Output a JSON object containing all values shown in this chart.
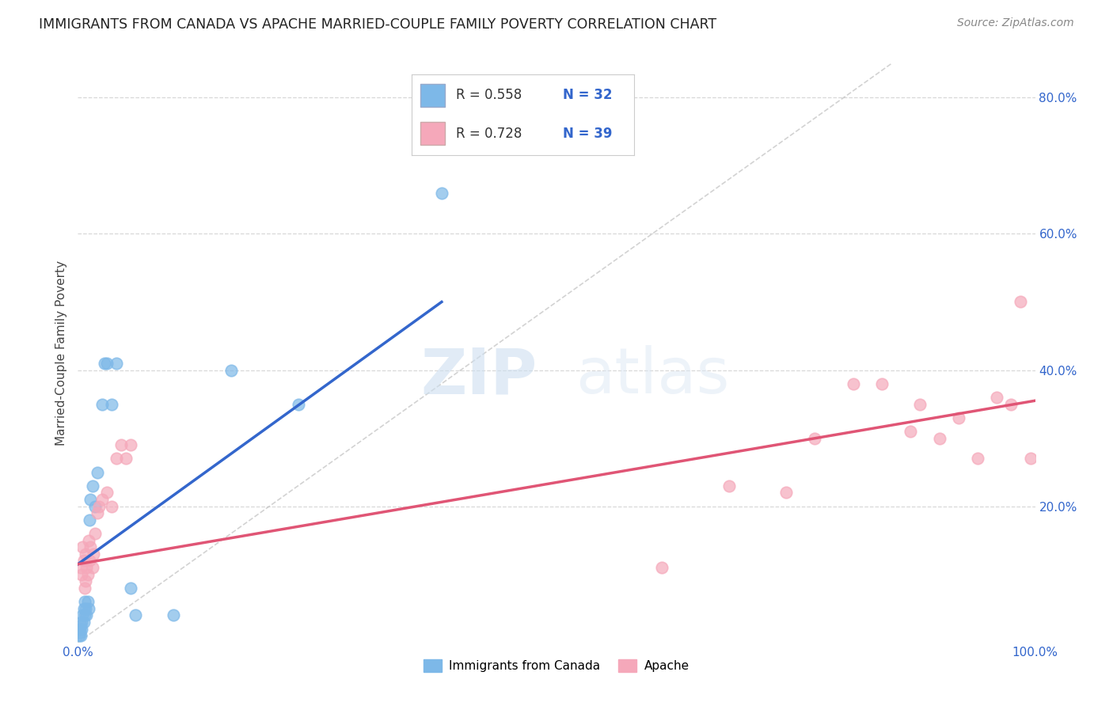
{
  "title": "IMMIGRANTS FROM CANADA VS APACHE MARRIED-COUPLE FAMILY POVERTY CORRELATION CHART",
  "source": "Source: ZipAtlas.com",
  "ylabel": "Married-Couple Family Poverty",
  "xlim": [
    0.0,
    1.0
  ],
  "ylim": [
    0.0,
    0.85
  ],
  "xticks": [
    0.0,
    0.2,
    0.4,
    0.6,
    0.8,
    1.0
  ],
  "xticklabels": [
    "0.0%",
    "",
    "",
    "",
    "",
    "100.0%"
  ],
  "yticks": [
    0.2,
    0.4,
    0.6,
    0.8
  ],
  "yticklabels_right": [
    "20.0%",
    "40.0%",
    "60.0%",
    "80.0%"
  ],
  "legend_labels": [
    "Immigrants from Canada",
    "Apache"
  ],
  "legend_R1": "R = 0.558",
  "legend_N1": "N = 32",
  "legend_R2": "R = 0.728",
  "legend_N2": "N = 39",
  "blue_scatter_color": "#7db8e8",
  "pink_scatter_color": "#f5a8ba",
  "blue_line_color": "#3366cc",
  "pink_line_color": "#e05575",
  "diagonal_color": "#c0c0c0",
  "background_color": "#ffffff",
  "grid_color": "#d8d8d8",
  "watermark_zip": "ZIP",
  "watermark_atlas": "atlas",
  "canada_x": [
    0.001,
    0.002,
    0.002,
    0.003,
    0.003,
    0.004,
    0.004,
    0.005,
    0.006,
    0.006,
    0.007,
    0.007,
    0.008,
    0.009,
    0.01,
    0.011,
    0.012,
    0.013,
    0.015,
    0.018,
    0.02,
    0.025,
    0.028,
    0.03,
    0.035,
    0.04,
    0.055,
    0.06,
    0.1,
    0.16,
    0.23,
    0.38
  ],
  "canada_y": [
    0.01,
    0.02,
    0.015,
    0.025,
    0.01,
    0.03,
    0.02,
    0.04,
    0.03,
    0.05,
    0.04,
    0.06,
    0.05,
    0.04,
    0.06,
    0.05,
    0.18,
    0.21,
    0.23,
    0.2,
    0.25,
    0.35,
    0.41,
    0.41,
    0.35,
    0.41,
    0.08,
    0.04,
    0.04,
    0.4,
    0.35,
    0.66
  ],
  "apache_x": [
    0.003,
    0.004,
    0.005,
    0.006,
    0.007,
    0.008,
    0.008,
    0.009,
    0.01,
    0.011,
    0.012,
    0.013,
    0.015,
    0.016,
    0.018,
    0.02,
    0.022,
    0.025,
    0.03,
    0.035,
    0.04,
    0.045,
    0.05,
    0.055,
    0.61,
    0.68,
    0.74,
    0.77,
    0.81,
    0.84,
    0.87,
    0.88,
    0.9,
    0.92,
    0.94,
    0.96,
    0.975,
    0.985,
    0.995
  ],
  "apache_y": [
    0.11,
    0.1,
    0.14,
    0.12,
    0.08,
    0.13,
    0.09,
    0.11,
    0.1,
    0.15,
    0.12,
    0.14,
    0.11,
    0.13,
    0.16,
    0.19,
    0.2,
    0.21,
    0.22,
    0.2,
    0.27,
    0.29,
    0.27,
    0.29,
    0.11,
    0.23,
    0.22,
    0.3,
    0.38,
    0.38,
    0.31,
    0.35,
    0.3,
    0.33,
    0.27,
    0.36,
    0.35,
    0.5,
    0.27
  ],
  "blue_trendline_x": [
    0.0,
    0.38
  ],
  "blue_trendline_y": [
    0.115,
    0.5
  ],
  "pink_trendline_x": [
    0.0,
    1.0
  ],
  "pink_trendline_y": [
    0.115,
    0.355
  ]
}
